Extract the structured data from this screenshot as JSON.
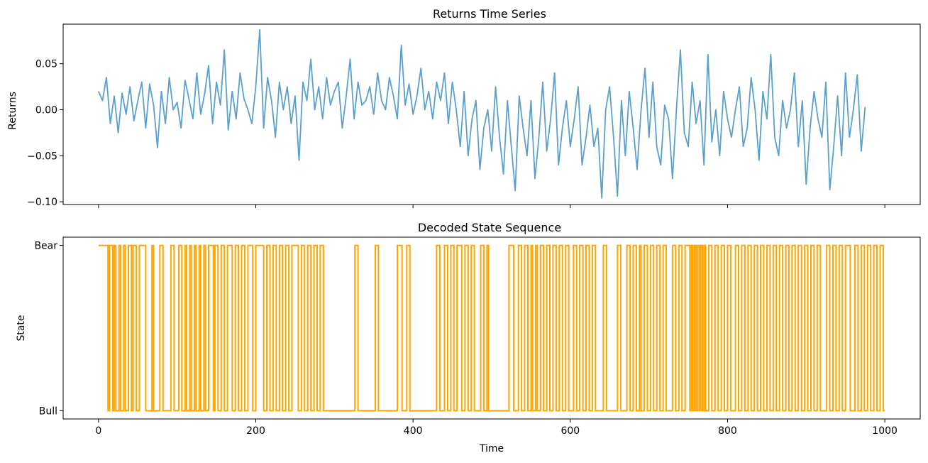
{
  "chart_data": [
    {
      "type": "line",
      "title": "Returns Time Series",
      "xlabel": "",
      "ylabel": "Returns",
      "xlim": [
        -45,
        1045
      ],
      "ylim": [
        -0.103,
        0.093
      ],
      "xticks": [
        0,
        200,
        400,
        600,
        800,
        1000
      ],
      "xtick_labels_visible": false,
      "yticks": [
        -0.1,
        -0.05,
        0.0,
        0.05
      ],
      "ytick_labels": [
        "−0.10",
        "−0.05",
        "0.00",
        "0.05"
      ],
      "color": "#5ba0cc",
      "series": [
        {
          "x_step": 5,
          "x_start": 0,
          "values": [
            0.02,
            0.01,
            0.035,
            -0.015,
            0.015,
            -0.025,
            0.018,
            -0.005,
            0.025,
            -0.012,
            0.01,
            0.03,
            -0.02,
            0.028,
            0.005,
            -0.041,
            0.02,
            -0.015,
            0.035,
            0.0,
            0.008,
            -0.02,
            0.032,
            0.012,
            -0.01,
            0.04,
            -0.005,
            0.018,
            0.048,
            -0.015,
            0.03,
            0.005,
            0.065,
            -0.022,
            0.02,
            -0.01,
            0.04,
            0.012,
            0.0,
            -0.015,
            0.025,
            0.087,
            -0.02,
            0.035,
            0.01,
            -0.03,
            0.03,
            0.0,
            0.025,
            -0.015,
            0.015,
            -0.055,
            0.03,
            0.01,
            0.055,
            0.0,
            0.025,
            -0.01,
            0.035,
            0.005,
            0.02,
            0.03,
            -0.02,
            0.015,
            0.055,
            -0.01,
            0.03,
            0.005,
            0.01,
            0.025,
            -0.005,
            0.04,
            0.01,
            0.0,
            0.035,
            0.015,
            -0.01,
            0.07,
            0.005,
            0.028,
            -0.005,
            0.015,
            0.045,
            0.0,
            0.02,
            -0.01,
            0.03,
            0.01,
            0.04,
            -0.015,
            0.03,
            0.0,
            -0.04,
            0.02,
            -0.05,
            -0.01,
            0.01,
            -0.065,
            -0.02,
            0.0,
            -0.045,
            0.025,
            -0.03,
            -0.07,
            0.01,
            -0.04,
            -0.088,
            0.015,
            -0.02,
            -0.05,
            0.01,
            -0.075,
            -0.03,
            0.03,
            -0.045,
            -0.01,
            0.04,
            -0.06,
            -0.02,
            0.01,
            -0.04,
            -0.01,
            0.025,
            -0.06,
            -0.03,
            0.005,
            -0.04,
            -0.02,
            -0.096,
            0.0,
            0.025,
            -0.03,
            -0.094,
            0.01,
            -0.05,
            0.02,
            -0.02,
            -0.065,
            0.0,
            0.045,
            -0.03,
            0.03,
            -0.04,
            -0.06,
            0.005,
            -0.01,
            -0.075,
            0.0,
            0.065,
            -0.025,
            -0.04,
            0.03,
            -0.015,
            0.01,
            -0.06,
            0.06,
            -0.035,
            0.0,
            -0.05,
            0.02,
            -0.01,
            -0.03,
            0.0,
            0.025,
            -0.04,
            -0.02,
            0.035,
            0.0,
            -0.055,
            0.02,
            -0.01,
            0.06,
            -0.03,
            -0.05,
            0.01,
            -0.02,
            0.0,
            0.04,
            -0.04,
            0.01,
            -0.081,
            -0.02,
            0.02,
            -0.01,
            -0.03,
            0.03,
            -0.087,
            -0.04,
            0.015,
            -0.05,
            0.04,
            -0.03,
            0.0,
            0.038,
            -0.045,
            0.003
          ]
        }
      ]
    },
    {
      "type": "line",
      "step": true,
      "title": "Decoded State Sequence",
      "xlabel": "Time",
      "ylabel": "State",
      "xlim": [
        -45,
        1045
      ],
      "ylim": [
        -0.05,
        1.05
      ],
      "xticks": [
        0,
        200,
        400,
        600,
        800,
        1000
      ],
      "xtick_labels": [
        "0",
        "200",
        "400",
        "600",
        "800",
        "1000"
      ],
      "yticks": [
        0,
        1
      ],
      "ytick_labels": [
        "Bull",
        "Bear"
      ],
      "color": "#ffa500",
      "series": [
        {
          "name": "",
          "transitions_x": [
            0,
            12,
            14,
            18,
            20,
            22,
            26,
            28,
            32,
            34,
            38,
            42,
            44,
            48,
            52,
            60,
            68,
            70,
            78,
            82,
            92,
            96,
            102,
            106,
            110,
            112,
            116,
            118,
            122,
            124,
            128,
            130,
            134,
            136,
            140,
            146,
            148,
            152,
            156,
            160,
            164,
            170,
            174,
            178,
            182,
            186,
            190,
            196,
            200,
            210,
            214,
            218,
            222,
            226,
            230,
            234,
            238,
            242,
            246,
            254,
            258,
            262,
            266,
            270,
            274,
            278,
            282,
            286,
            326,
            330,
            352,
            356,
            380,
            386,
            392,
            396,
            430,
            434,
            440,
            444,
            448,
            452,
            456,
            462,
            466,
            470,
            474,
            478,
            486,
            490,
            494,
            496,
            522,
            528,
            534,
            538,
            542,
            546,
            550,
            552,
            556,
            558,
            562,
            566,
            570,
            574,
            578,
            582,
            586,
            590,
            594,
            598,
            604,
            608,
            612,
            616,
            620,
            624,
            628,
            632,
            642,
            646,
            660,
            664,
            672,
            676,
            680,
            684,
            688,
            690,
            694,
            698,
            702,
            706,
            710,
            714,
            718,
            722,
            730,
            734,
            738,
            742,
            746,
            752,
            754,
            756,
            758,
            760,
            762,
            764,
            766,
            768,
            770,
            772,
            776,
            780,
            784,
            788,
            792,
            796,
            800,
            804,
            810,
            814,
            818,
            822,
            826,
            830,
            834,
            838,
            842,
            846,
            850,
            854,
            858,
            862,
            866,
            870,
            874,
            878,
            882,
            886,
            890,
            894,
            898,
            902,
            906,
            910,
            914,
            918,
            926,
            930,
            934,
            938,
            942,
            946,
            950,
            956,
            962,
            966,
            970,
            974,
            978,
            982,
            986,
            990,
            994,
            998,
            1000
          ],
          "start_state": 1
        }
      ]
    }
  ]
}
